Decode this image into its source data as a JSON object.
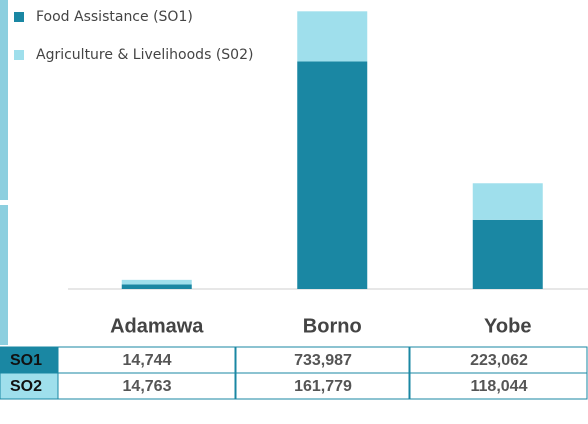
{
  "chart_data": {
    "type": "stacked_bar",
    "categories": [
      "Adamawa",
      "Borno",
      "Yobe"
    ],
    "series": [
      {
        "name": "Food Assistance (SO1)",
        "color": "#1a87a3",
        "values": [
          14744,
          733987,
          223062
        ],
        "value_labels": [
          "14,744",
          "733,987",
          "223,062"
        ]
      },
      {
        "name": "Agriculture & Livelihoods (S02)",
        "color": "#9fdfec",
        "values": [
          14763,
          161779,
          118044
        ],
        "value_labels": [
          "14,763",
          "161,779",
          "118,044"
        ]
      }
    ],
    "table_row_labels": [
      "SO1",
      "SO2"
    ],
    "ylim": [
      0,
      900000
    ],
    "legend": "top-left"
  }
}
